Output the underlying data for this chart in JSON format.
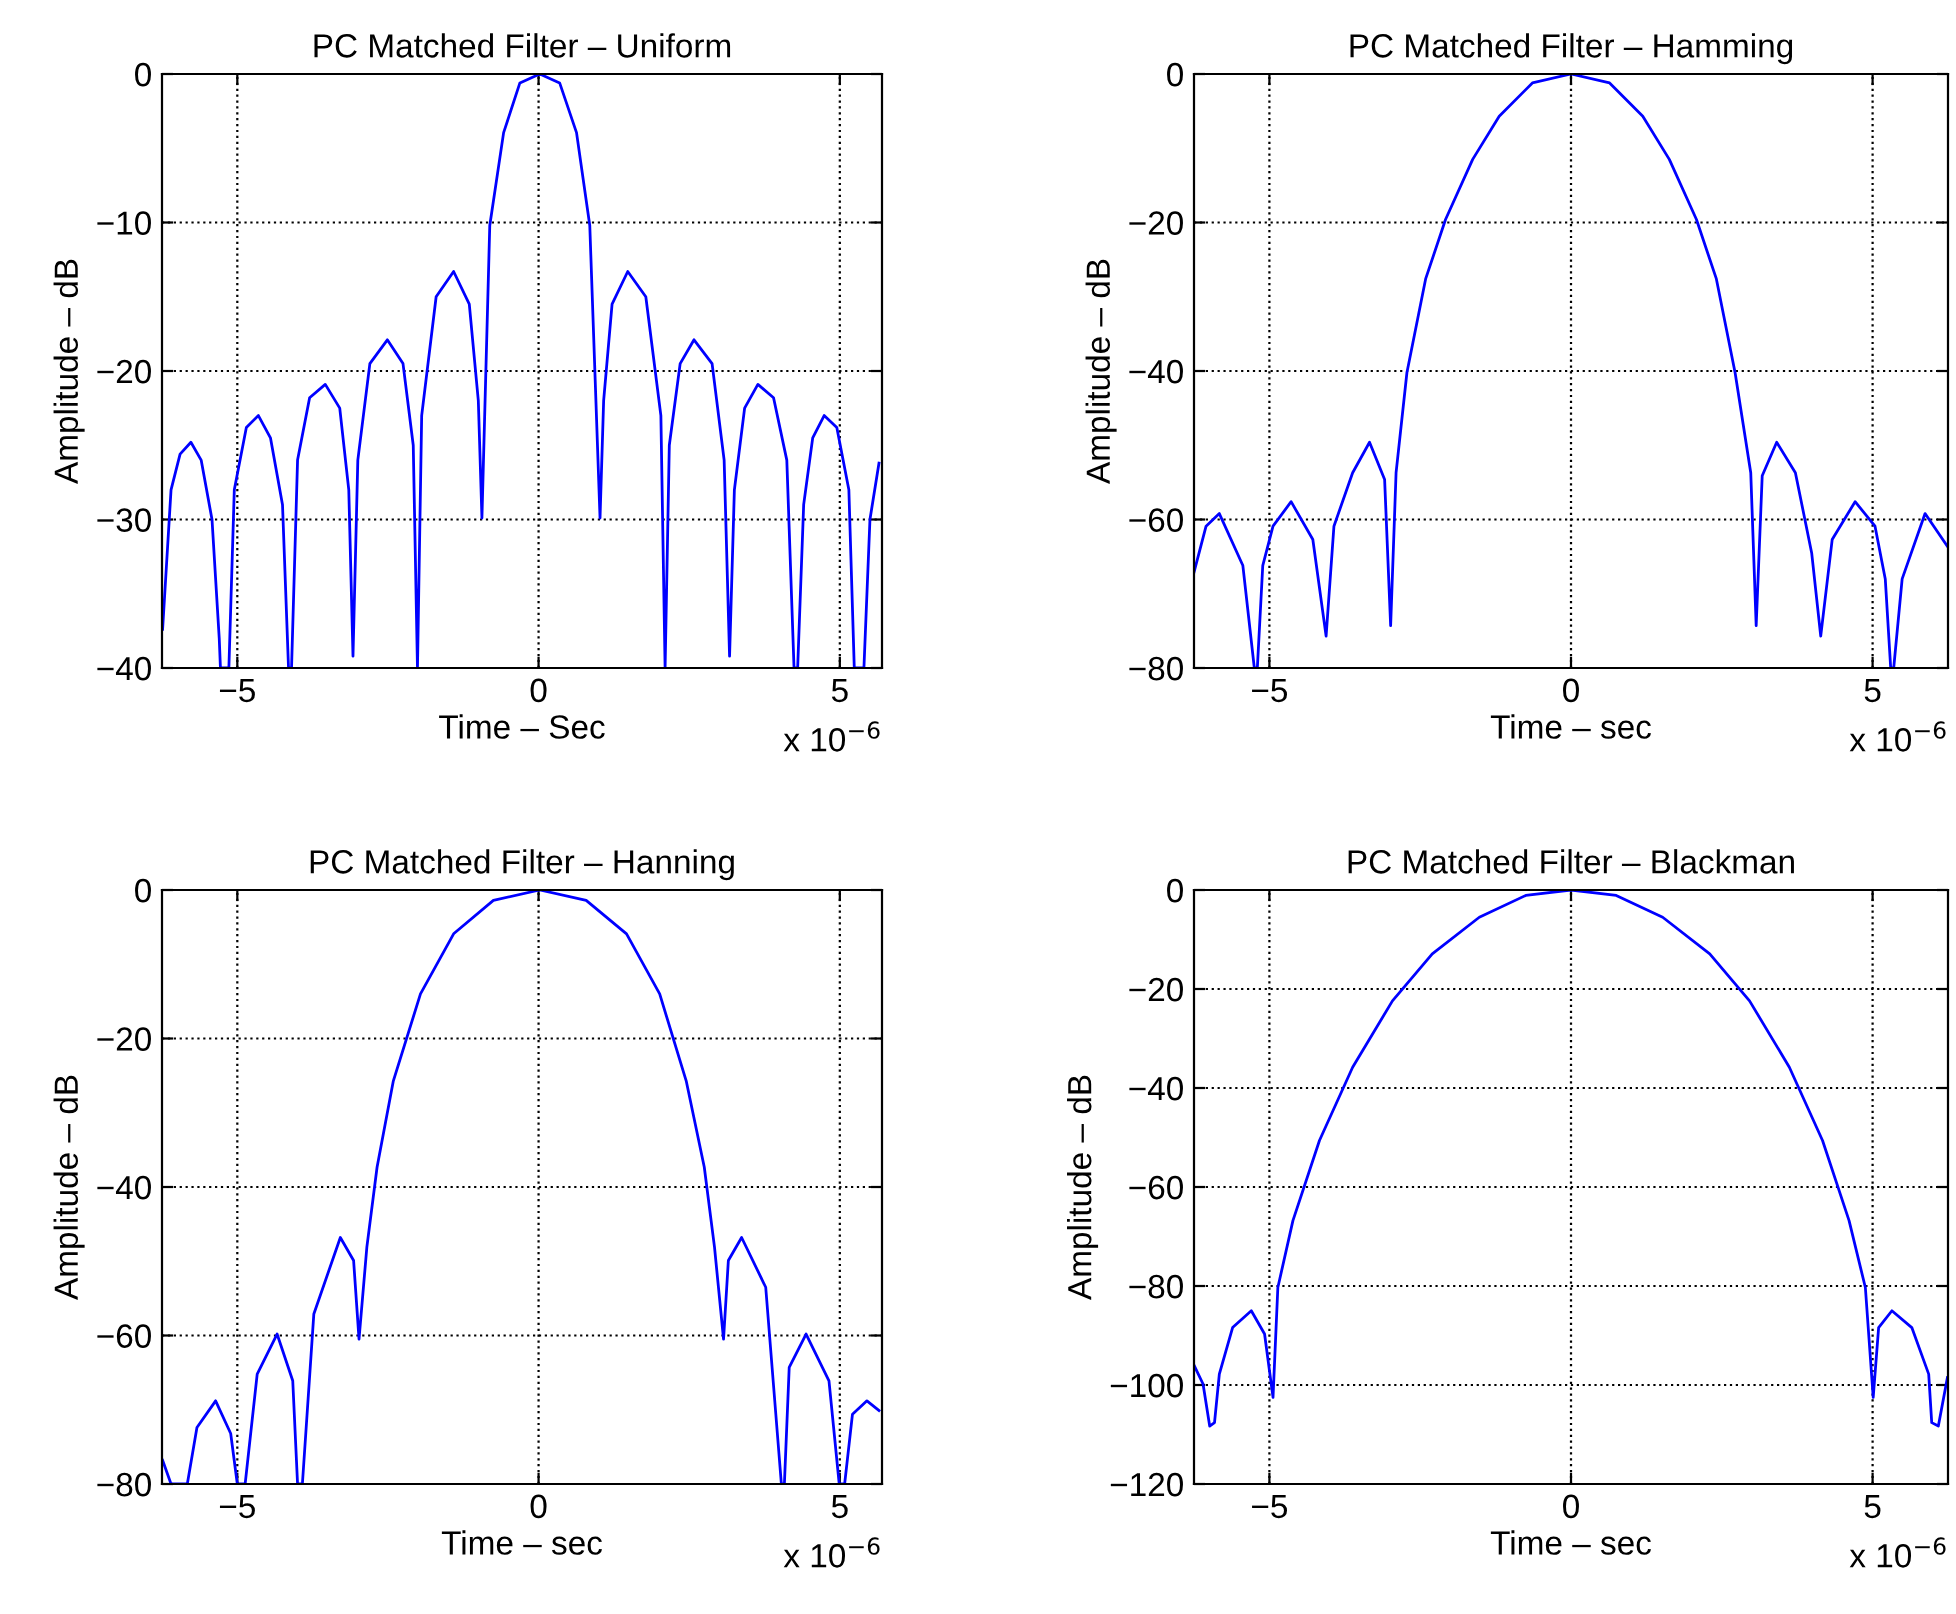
{
  "chart_data": [
    {
      "type": "line",
      "title": "PC Matched Filter – Uniform",
      "xlabel": "Time – Sec",
      "ylabel": "Amplitude – dB",
      "annotations": [
        "x 10$^{−6}$"
      ],
      "xlim": [
        -6.25,
        5.7
      ],
      "ylim": [
        -40,
        0
      ],
      "xticks": [
        -5,
        0,
        5
      ],
      "yticks": [
        -40,
        -30,
        -20,
        -10,
        0
      ],
      "grid": true,
      "line_style": "solid",
      "series": [
        {
          "color": "#0000ff",
          "x": [
            -6.24,
            -6.1,
            -5.95,
            -5.77,
            -5.6,
            -5.42,
            -5.3,
            -5.28,
            -5.14,
            -5.05,
            -4.85,
            -4.65,
            -4.45,
            -4.25,
            -4.15,
            -4.1,
            -4.0,
            -3.8,
            -3.54,
            -3.3,
            -3.15,
            -3.08,
            -3.0,
            -2.8,
            -2.51,
            -2.25,
            -2.08,
            -2.01,
            -1.94,
            -1.7,
            -1.41,
            -1.15,
            -1.0,
            -0.94,
            -0.81,
            -0.58,
            -0.31,
            0.02,
            0.35,
            0.63,
            0.85,
            1.02,
            1.08,
            1.22,
            1.48,
            1.78,
            2.03,
            2.1,
            2.17,
            2.35,
            2.58,
            2.88,
            3.08,
            3.17,
            3.25,
            3.42,
            3.64,
            3.9,
            4.12,
            4.24,
            4.3,
            4.4,
            4.55,
            4.74,
            4.95,
            5.15,
            5.24,
            5.4,
            5.5,
            5.65
          ],
          "values": [
            -37.4,
            -28,
            -25.6,
            -24.8,
            -26,
            -30,
            -38,
            -40,
            -40,
            -28,
            -23.8,
            -23.0,
            -24.5,
            -29,
            -40,
            -40,
            -26,
            -21.8,
            -20.9,
            -22.5,
            -28,
            -39.2,
            -26,
            -19.5,
            -17.9,
            -19.5,
            -25,
            -40,
            -23,
            -15,
            -13.3,
            -15.5,
            -22,
            -29.9,
            -10.2,
            -3.95,
            -0.6,
            0,
            -0.6,
            -3.95,
            -10.2,
            -29.9,
            -22,
            -15.5,
            -13.3,
            -15,
            -23,
            -40,
            -25,
            -19.5,
            -17.9,
            -19.5,
            -26,
            -39.2,
            -28,
            -22.5,
            -20.9,
            -21.8,
            -26,
            -40,
            -40,
            -29,
            -24.5,
            -23.0,
            -23.8,
            -28,
            -40,
            -40,
            -30,
            -26.2
          ]
        }
      ]
    },
    {
      "type": "line",
      "title": "PC Matched Filter – Hamming",
      "xlabel": "Time – sec",
      "ylabel": "Amplitude – dB",
      "annotations": [
        "x 10$^{−6}$"
      ],
      "xlim": [
        -6.25,
        6.25
      ],
      "ylim": [
        -80,
        0
      ],
      "xticks": [
        -5,
        0,
        5
      ],
      "yticks": [
        -80,
        -60,
        -40,
        -20,
        0
      ],
      "grid": true,
      "line_style": "solid",
      "series": [
        {
          "color": "#0000ff",
          "x": [
            -6.25,
            -6.05,
            -5.83,
            -5.44,
            -5.25,
            -5.2,
            -5.11,
            -4.94,
            -4.64,
            -4.28,
            -4.06,
            -3.93,
            -3.62,
            -3.34,
            -3.09,
            -2.99,
            -2.9,
            -2.72,
            -2.41,
            -2.08,
            -1.63,
            -1.19,
            -0.64,
            0,
            0.64,
            1.19,
            1.63,
            2.08,
            2.41,
            2.72,
            2.98,
            3.07,
            3.17,
            3.41,
            3.72,
            3.99,
            4.14,
            4.33,
            4.71,
            5.04,
            5.21,
            5.3,
            5.35,
            5.49,
            5.87,
            6.24
          ],
          "values": [
            -67.1,
            -60.9,
            -59.2,
            -66.2,
            -80,
            -80,
            -66.2,
            -60.9,
            -57.6,
            -62.7,
            -75.7,
            -60.9,
            -53.7,
            -49.6,
            -54.6,
            -74.3,
            -53.7,
            -40.2,
            -27.6,
            -19.6,
            -11.5,
            -5.7,
            -1.2,
            0,
            -1.2,
            -5.7,
            -11.5,
            -19.6,
            -27.6,
            -40.2,
            -53.7,
            -74.3,
            -54.1,
            -49.6,
            -53.7,
            -64.5,
            -75.7,
            -62.7,
            -57.6,
            -60.9,
            -68,
            -80,
            -80,
            -68,
            -59.2,
            -63.6
          ]
        }
      ]
    },
    {
      "type": "line",
      "title": "PC Matched Filter – Hanning",
      "xlabel": "Time – sec",
      "ylabel": "Amplitude – dB",
      "annotations": [
        "x 10$^{−6}$"
      ],
      "xlim": [
        -6.25,
        5.7
      ],
      "ylim": [
        -80,
        0
      ],
      "xticks": [
        -5,
        0,
        5
      ],
      "yticks": [
        -80,
        -60,
        -40,
        -20,
        0
      ],
      "grid": true,
      "line_style": "solid",
      "series": [
        {
          "color": "#0000ff",
          "x": [
            -6.24,
            -6.1,
            -5.83,
            -5.67,
            -5.36,
            -5.11,
            -5.0,
            -4.87,
            -4.67,
            -4.34,
            -4.08,
            -4.0,
            -3.92,
            -3.73,
            -3.29,
            -3.07,
            -2.98,
            -2.85,
            -2.68,
            -2.41,
            -1.96,
            -1.41,
            -0.75,
            0.02,
            0.79,
            1.46,
            2.01,
            2.45,
            2.75,
            2.92,
            3.07,
            3.15,
            3.37,
            3.77,
            4.03,
            4.08,
            4.16,
            4.44,
            4.82,
            4.99,
            5.08,
            5.21,
            5.45,
            5.65
          ],
          "values": [
            -76.8,
            -80,
            -80,
            -72.4,
            -68.8,
            -73.2,
            -80,
            -80,
            -65.2,
            -59.8,
            -66.1,
            -80,
            -80,
            -57.1,
            -46.8,
            -49.9,
            -60.5,
            -48.1,
            -37.3,
            -25.7,
            -14,
            -5.9,
            -1.4,
            0,
            -1.4,
            -5.9,
            -14,
            -25.7,
            -37.3,
            -48.1,
            -60.5,
            -49.9,
            -46.8,
            -53.5,
            -80,
            -80,
            -64.3,
            -59.8,
            -66.1,
            -80,
            -80,
            -70.6,
            -68.8,
            -70.1
          ]
        }
      ]
    },
    {
      "type": "line",
      "title": "PC Matched Filter – Blackman",
      "xlabel": "Time – sec",
      "ylabel": "Amplitude – dB",
      "annotations": [
        "x 10$^{−6}$"
      ],
      "xlim": [
        -6.25,
        6.25
      ],
      "ylim": [
        -120,
        0
      ],
      "xticks": [
        -5,
        0,
        5
      ],
      "yticks": [
        -120,
        -100,
        -80,
        -60,
        -40,
        -20,
        0
      ],
      "grid": true,
      "line_style": "solid",
      "series": [
        {
          "color": "#0000ff",
          "x": [
            -6.25,
            -6.1,
            -5.99,
            -5.91,
            -5.83,
            -5.61,
            -5.3,
            -5.08,
            -4.94,
            -4.86,
            -4.61,
            -4.17,
            -3.62,
            -2.96,
            -2.3,
            -1.52,
            -0.75,
            0,
            0.75,
            1.52,
            2.3,
            2.96,
            3.62,
            4.17,
            4.61,
            4.88,
            5.01,
            5.1,
            5.32,
            5.65,
            5.93,
            5.98,
            6.09,
            6.24
          ],
          "values": [
            -96.0,
            -99.8,
            -108.3,
            -107.6,
            -97.8,
            -88.4,
            -85.0,
            -89.7,
            -102.5,
            -80.3,
            -66.8,
            -50.6,
            -35.8,
            -22.4,
            -12.9,
            -5.5,
            -1.1,
            0,
            -1.1,
            -5.5,
            -12.9,
            -22.4,
            -35.8,
            -50.6,
            -66.8,
            -80.3,
            -102.5,
            -88.4,
            -85,
            -88.4,
            -97.8,
            -107.6,
            -108.3,
            -98.5
          ]
        }
      ]
    }
  ]
}
